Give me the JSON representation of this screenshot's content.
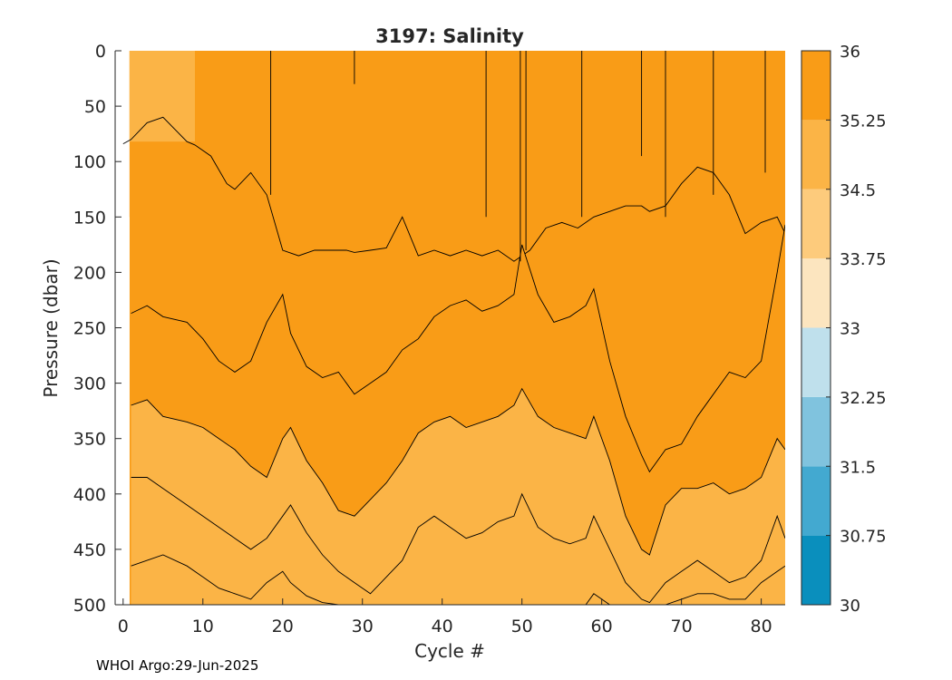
{
  "chart_data": {
    "type": "contour",
    "title": "3197:  Salinity",
    "xlabel": "Cycle #",
    "ylabel": "Pressure (dbar)",
    "xlim": [
      -1,
      83
    ],
    "ylim": [
      500,
      0
    ],
    "xticks": [
      0,
      10,
      20,
      30,
      40,
      50,
      60,
      70,
      80
    ],
    "yticks": [
      0,
      50,
      100,
      150,
      200,
      250,
      300,
      350,
      400,
      450,
      500
    ],
    "grid": false,
    "colorbar": {
      "levels": [
        30,
        30.75,
        31.5,
        32.25,
        33,
        33.75,
        34.5,
        35.25,
        36
      ],
      "tick_labels": [
        "30",
        "30.75",
        "31.5",
        "32.25",
        "33",
        "33.75",
        "34.5",
        "35.25",
        "36"
      ],
      "colors": [
        "#0a8fbd",
        "#43a9d0",
        "#80c3de",
        "#bfe0ec",
        "#fce5bf",
        "#fdcb7c",
        "#fbb446",
        "#f99c17"
      ]
    },
    "background_color": "#f99c17",
    "contours": [
      {
        "level": 34.5,
        "fill": "#fbb446",
        "x": [
          0,
          1,
          3,
          5,
          8,
          9,
          11,
          13,
          14,
          16,
          18,
          20,
          22,
          24,
          26,
          28,
          29,
          31,
          33,
          35,
          37,
          39,
          41,
          43,
          45,
          47,
          49,
          51,
          53,
          55,
          57,
          59,
          61,
          63,
          65,
          66,
          68,
          70,
          72,
          74,
          76,
          78,
          80,
          82,
          83
        ],
        "depth": [
          84,
          80,
          65,
          60,
          82,
          85,
          95,
          120,
          125,
          110,
          130,
          180,
          185,
          180,
          180,
          180,
          182,
          180,
          178,
          150,
          185,
          180,
          185,
          180,
          185,
          180,
          190,
          180,
          160,
          155,
          160,
          150,
          145,
          140,
          140,
          145,
          140,
          120,
          105,
          110,
          130,
          165,
          155,
          150,
          165
        ]
      },
      {
        "level": 35.25,
        "fill": "#f99c17",
        "x": [
          1,
          3,
          5,
          8,
          10,
          12,
          14,
          16,
          18,
          20,
          21,
          23,
          25,
          27,
          29,
          31,
          33,
          35,
          37,
          39,
          41,
          43,
          45,
          47,
          49,
          50,
          52,
          54,
          56,
          58,
          59,
          61,
          63,
          65,
          66,
          68,
          70,
          72,
          74,
          76,
          78,
          80,
          82,
          83
        ],
        "depth": [
          237,
          230,
          240,
          245,
          260,
          280,
          290,
          280,
          245,
          220,
          255,
          285,
          295,
          290,
          310,
          300,
          290,
          270,
          260,
          240,
          230,
          225,
          235,
          230,
          220,
          175,
          220,
          245,
          240,
          230,
          215,
          280,
          330,
          365,
          380,
          360,
          355,
          330,
          310,
          290,
          295,
          280,
          200,
          157
        ]
      },
      {
        "level": 35.25,
        "fill": "#fbb446",
        "x": [
          1,
          3,
          5,
          8,
          10,
          12,
          14,
          16,
          18,
          20,
          21,
          23,
          25,
          27,
          29,
          31,
          33,
          35,
          37,
          39,
          41,
          43,
          45,
          47,
          49,
          50,
          52,
          54,
          56,
          58,
          59,
          61,
          63,
          65,
          66,
          68,
          70,
          72,
          74,
          76,
          78,
          80,
          82,
          83
        ],
        "depth": [
          320,
          315,
          330,
          335,
          340,
          350,
          360,
          375,
          385,
          350,
          340,
          370,
          390,
          415,
          420,
          405,
          390,
          370,
          345,
          335,
          330,
          340,
          335,
          330,
          320,
          305,
          330,
          340,
          345,
          350,
          330,
          370,
          420,
          450,
          455,
          410,
          395,
          395,
          390,
          400,
          395,
          385,
          350,
          360
        ]
      },
      {
        "level": 34.5,
        "fill": "#fbb446",
        "x": [
          1,
          3,
          5,
          8,
          10,
          12,
          14,
          16,
          18,
          20,
          21,
          23,
          25,
          27,
          29,
          31,
          33,
          35,
          37,
          39,
          41,
          43,
          45,
          47,
          49,
          50,
          52,
          54,
          56,
          58,
          59,
          61,
          63,
          65,
          66,
          68,
          70,
          72,
          74,
          76,
          78,
          80,
          82,
          83
        ],
        "depth": [
          385,
          385,
          395,
          410,
          420,
          430,
          440,
          450,
          440,
          420,
          410,
          435,
          455,
          470,
          480,
          490,
          475,
          460,
          430,
          420,
          430,
          440,
          435,
          425,
          420,
          400,
          430,
          440,
          445,
          440,
          420,
          450,
          480,
          495,
          498,
          480,
          470,
          460,
          470,
          480,
          475,
          460,
          420,
          440
        ]
      },
      {
        "level": 34.5,
        "fill": "#fbb446",
        "x": [
          1,
          3,
          5,
          8,
          10,
          12,
          14,
          16,
          18,
          20,
          21,
          23,
          25,
          27,
          29,
          31,
          33,
          35,
          37,
          39,
          41,
          43,
          45,
          47,
          49,
          50,
          52,
          54,
          56,
          58,
          59,
          61,
          63,
          65,
          66,
          68,
          70,
          72,
          74,
          76,
          78,
          80,
          82,
          83
        ],
        "depth": [
          465,
          460,
          455,
          465,
          475,
          485,
          490,
          495,
          480,
          470,
          480,
          492,
          498,
          500,
          500,
          500,
          500,
          500,
          500,
          500,
          500,
          500,
          500,
          500,
          500,
          500,
          500,
          500,
          500,
          500,
          490,
          500,
          500,
          500,
          500,
          500,
          495,
          490,
          490,
          495,
          495,
          480,
          470,
          465
        ]
      }
    ]
  },
  "footer": {
    "text": "WHOI Argo:29-Jun-2025"
  }
}
